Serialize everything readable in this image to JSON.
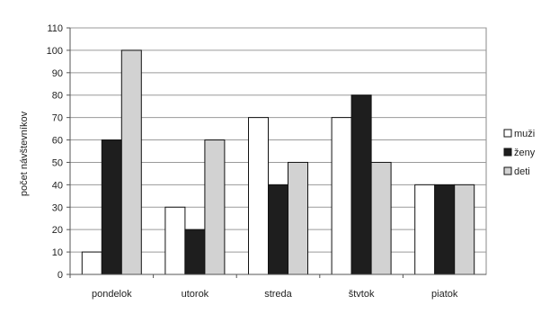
{
  "chart_data": {
    "type": "bar",
    "title": "",
    "xlabel": "",
    "ylabel": "počet návštevníkov",
    "ylim": [
      0,
      110
    ],
    "ytick_step": 10,
    "grid": "horizontal",
    "legend_position": "right",
    "categories": [
      "pondelok",
      "utorok",
      "streda",
      "štvtok",
      "piatok"
    ],
    "series": [
      {
        "name": "muži",
        "color": "#ffffff",
        "values": [
          10,
          30,
          70,
          70,
          40
        ]
      },
      {
        "name": "ženy",
        "color": "#1e1e1e",
        "values": [
          60,
          20,
          40,
          80,
          40
        ]
      },
      {
        "name": "deti",
        "color": "#d2d2d2",
        "values": [
          100,
          60,
          50,
          50,
          40
        ]
      }
    ]
  }
}
